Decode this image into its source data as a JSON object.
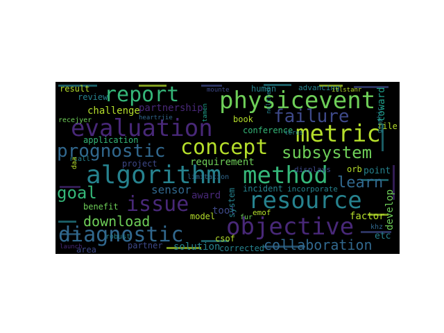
{
  "word_cloud": {
    "background": "#000000",
    "palette": [
      "#440154",
      "#482878",
      "#3e4989",
      "#31688e",
      "#26828e",
      "#1f9e89",
      "#35b779",
      "#6ece58",
      "#b5de2b"
    ],
    "words": [
      {
        "text": "physicevent",
        "color": "#6ece58"
      },
      {
        "text": "report",
        "color": "#35b779"
      },
      {
        "text": "evaluation",
        "color": "#482878"
      },
      {
        "text": "metric",
        "color": "#b5de2b"
      },
      {
        "text": "concept",
        "color": "#b5de2b"
      },
      {
        "text": "failure",
        "color": "#3e4989"
      },
      {
        "text": "subsystem",
        "color": "#6ece58"
      },
      {
        "text": "prognostic",
        "color": "#31688e"
      },
      {
        "text": "algorithm",
        "color": "#26828e"
      },
      {
        "text": "method",
        "color": "#35b779"
      },
      {
        "text": "resource",
        "color": "#26828e"
      },
      {
        "text": "learn",
        "color": "#31688e"
      },
      {
        "text": "issue",
        "color": "#482878"
      },
      {
        "text": "goal",
        "color": "#35b779"
      },
      {
        "text": "diagnostic",
        "color": "#31688e"
      },
      {
        "text": "objective",
        "color": "#482878"
      },
      {
        "text": "collaboration",
        "color": "#31688e"
      },
      {
        "text": "download",
        "color": "#6ece58"
      },
      {
        "text": "sensor",
        "color": "#31688e"
      },
      {
        "text": "partnership",
        "color": "#482878"
      },
      {
        "text": "challenge",
        "color": "#b5de2b"
      },
      {
        "text": "application",
        "color": "#35b779"
      },
      {
        "text": "project",
        "color": "#3e4989"
      },
      {
        "text": "review",
        "color": "#26828e"
      },
      {
        "text": "result",
        "color": "#b5de2b"
      },
      {
        "text": "human",
        "color": "#26828e"
      },
      {
        "text": "book",
        "color": "#b5de2b"
      },
      {
        "text": "conference",
        "color": "#35b779"
      },
      {
        "text": "requirement",
        "color": "#6ece58"
      },
      {
        "text": "incident",
        "color": "#26828e"
      },
      {
        "text": "point",
        "color": "#26828e"
      },
      {
        "text": "orb",
        "color": "#b5de2b"
      },
      {
        "text": "file",
        "color": "#b5de2b"
      },
      {
        "text": "toward",
        "color": "#1f9e89"
      },
      {
        "text": "develop",
        "color": "#6ece58"
      },
      {
        "text": "factor",
        "color": "#b5de2b"
      },
      {
        "text": "etc",
        "color": "#26828e"
      },
      {
        "text": "khz",
        "color": "#31688e"
      },
      {
        "text": "benefit",
        "color": "#6ece58"
      },
      {
        "text": "model",
        "color": "#b5de2b"
      },
      {
        "text": "tool",
        "color": "#3e4989"
      },
      {
        "text": "award",
        "color": "#482878"
      },
      {
        "text": "solution",
        "color": "#26828e"
      },
      {
        "text": "partner",
        "color": "#3e4989"
      },
      {
        "text": "area",
        "color": "#3e4989"
      },
      {
        "text": "robust",
        "color": "#26828e"
      },
      {
        "text": "incorporate",
        "color": "#26828e"
      },
      {
        "text": "displays",
        "color": "#3e4989"
      },
      {
        "text": "limitation",
        "color": "#31688e"
      },
      {
        "text": "emof",
        "color": "#b5de2b"
      },
      {
        "text": "fur",
        "color": "#6ece58"
      },
      {
        "text": "csof",
        "color": "#b5de2b"
      },
      {
        "text": "corrected",
        "color": "#26828e"
      },
      {
        "text": "system",
        "color": "#26828e"
      },
      {
        "text": "advancing",
        "color": "#26828e"
      },
      {
        "text": "rcall",
        "color": "#26828e"
      },
      {
        "text": "daa",
        "color": "#b5de2b"
      },
      {
        "text": "launch",
        "color": "#482878"
      },
      {
        "text": "recejyer",
        "color": "#6ece58"
      },
      {
        "text": "heartrjie",
        "color": "#31688e"
      },
      {
        "text": "mounte",
        "color": "#3e4989"
      },
      {
        "text": "itlstanr",
        "color": "#b5de2b"
      },
      {
        "text": "graphic",
        "color": "#26828e"
      },
      {
        "text": "noltred",
        "color": "#26828e"
      },
      {
        "text": "teres",
        "color": "#26828e"
      },
      {
        "text": "tamen",
        "color": "#1f9e89"
      }
    ]
  }
}
